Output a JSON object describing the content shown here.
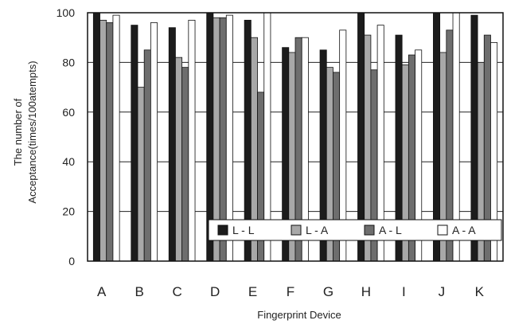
{
  "chart_data": {
    "type": "bar",
    "title": "",
    "xlabel": "Fingerprint Device",
    "ylabel_line1": "The number of",
    "ylabel_line2": "Acceptance(times/100atempts)",
    "ylim": [
      0,
      100
    ],
    "yticks": [
      0,
      20,
      40,
      60,
      80,
      100
    ],
    "grid": "horizontal",
    "legend_position": "bottom-right",
    "categories": [
      "A",
      "B",
      "C",
      "D",
      "E",
      "F",
      "G",
      "H",
      "I",
      "J",
      "K"
    ],
    "series": [
      {
        "name": "L - L",
        "color": "#1c1c1c",
        "values": [
          100,
          95,
          94,
          100,
          97,
          86,
          85,
          100,
          91,
          100,
          99
        ]
      },
      {
        "name": "L - A",
        "color": "#a8a8a8",
        "values": [
          97,
          70,
          82,
          98,
          90,
          84,
          78,
          91,
          79,
          84,
          80
        ]
      },
      {
        "name": "A - L",
        "color": "#6e6e6e",
        "values": [
          96,
          85,
          78,
          98,
          68,
          90,
          76,
          77,
          83,
          93,
          91
        ]
      },
      {
        "name": "A - A",
        "color": "#ffffff",
        "values": [
          99,
          96,
          97,
          99,
          100,
          90,
          93,
          95,
          85,
          100,
          88
        ]
      }
    ]
  }
}
